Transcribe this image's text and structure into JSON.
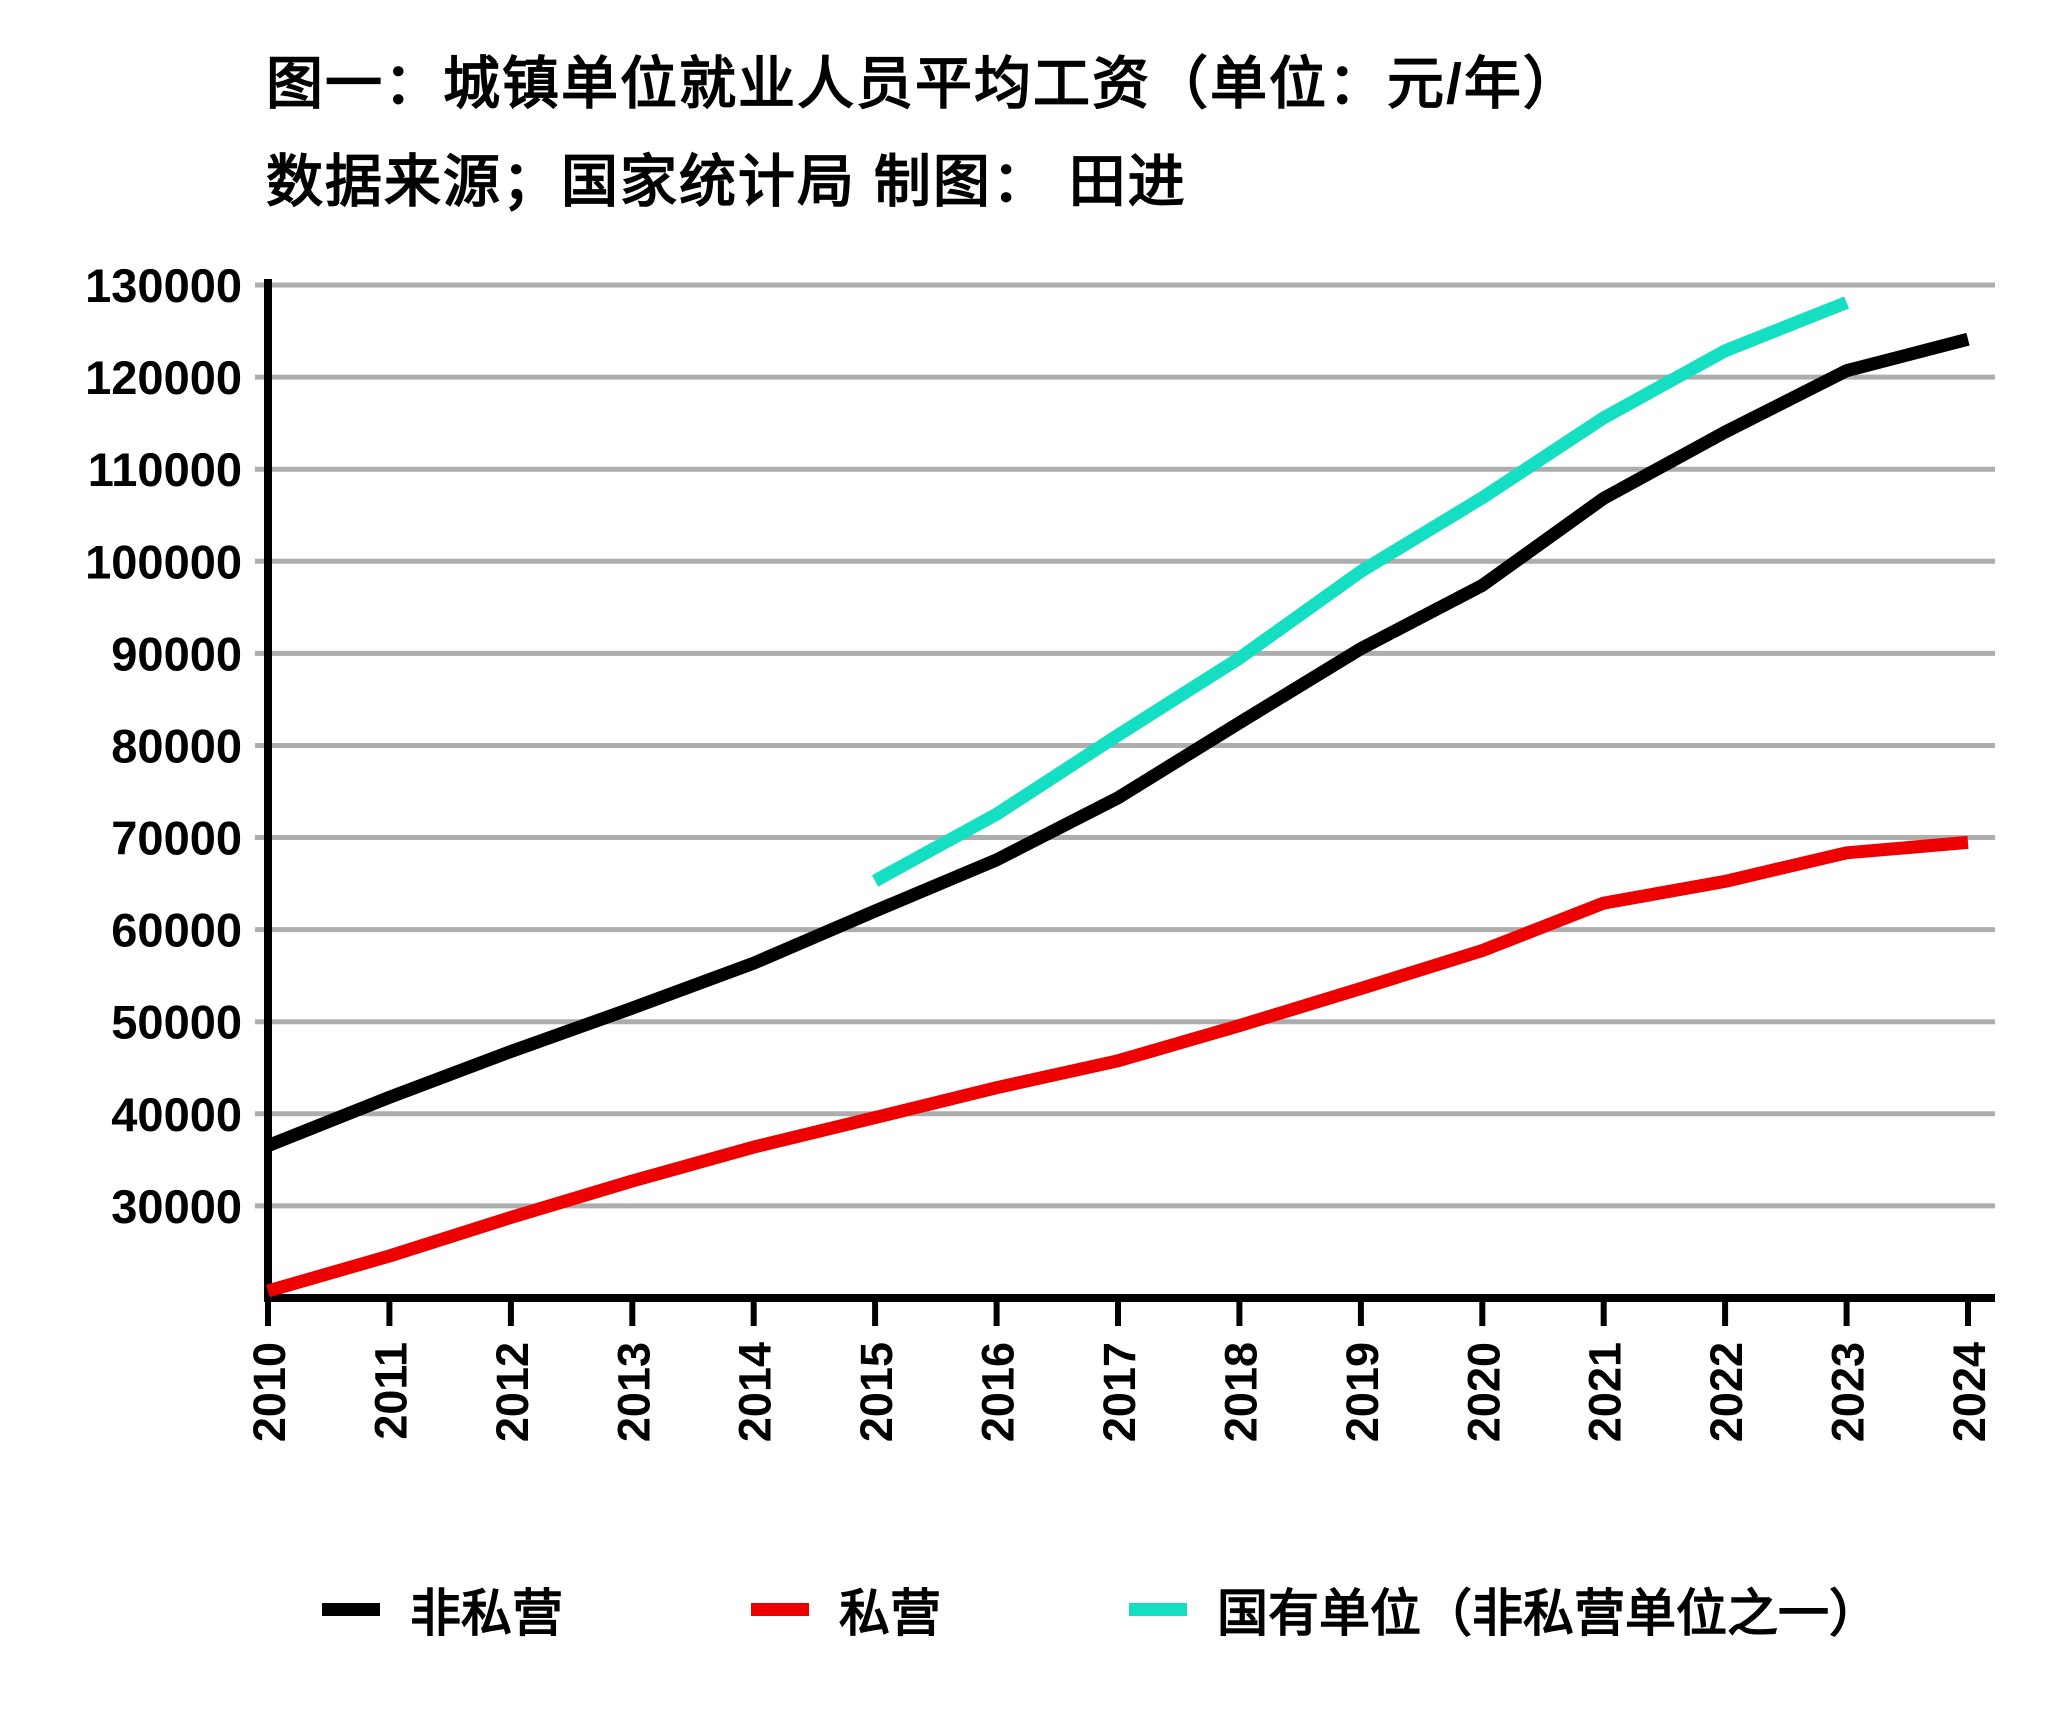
{
  "title": {
    "line1": "图一：城镇单位就业人员平均工资（单位：元/年）",
    "line2": "数据来源；国家统计局 制图： 田进"
  },
  "chart_data": {
    "type": "line",
    "x": [
      2010,
      2011,
      2012,
      2013,
      2014,
      2015,
      2016,
      2017,
      2018,
      2019,
      2020,
      2021,
      2022,
      2023,
      2024
    ],
    "series": [
      {
        "name": "非私营",
        "color": "#000000",
        "values": [
          36539,
          41799,
          46769,
          51483,
          56360,
          62029,
          67569,
          74318,
          82461,
          90501,
          97379,
          106837,
          114029,
          120698,
          124110
        ]
      },
      {
        "name": "私营",
        "color": "#ee0000",
        "values": [
          20759,
          24556,
          28752,
          32706,
          36390,
          39589,
          42833,
          45761,
          49575,
          53604,
          57727,
          62884,
          65237,
          68340,
          69476
        ]
      },
      {
        "name": "国有单位（非私营单位之一）",
        "color": "#15dfc3",
        "values": [
          null,
          null,
          null,
          null,
          null,
          65296,
          72538,
          81114,
          89474,
          98899,
          106895,
          115583,
          122854,
          128104,
          null
        ]
      }
    ],
    "ylim": [
      20000,
      130000
    ],
    "yticks": [
      30000,
      40000,
      50000,
      60000,
      70000,
      80000,
      90000,
      100000,
      110000,
      120000,
      130000
    ],
    "xlabel": "",
    "ylabel": "",
    "grid": "horizontal",
    "grid_color": "#adadad",
    "axis_color": "#000000",
    "legend_position": "bottom"
  }
}
